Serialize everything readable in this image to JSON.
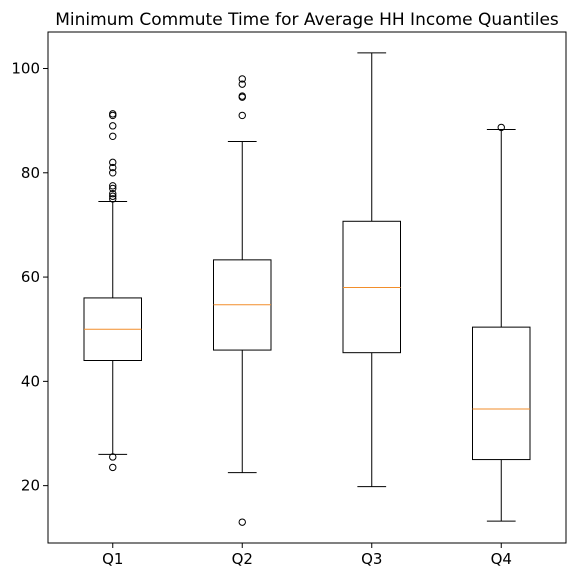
{
  "chart_data": {
    "type": "box",
    "title": "Minimum Commute Time for Average HH Income Quantiles",
    "xlabel": "",
    "ylabel": "",
    "ylim": [
      9,
      107
    ],
    "yticks": [
      20,
      40,
      60,
      80,
      100
    ],
    "grid": false,
    "median_color": "#f28e2b",
    "categories": [
      "Q1",
      "Q2",
      "Q3",
      "Q4"
    ],
    "boxes": [
      {
        "name": "Q1",
        "whisker_low": 26,
        "q1": 44,
        "median": 50,
        "q3": 56,
        "whisker_high": 74.5,
        "fliers": [
          23.5,
          25.5,
          75,
          75.5,
          76,
          77,
          77.5,
          80,
          81,
          82,
          87,
          89,
          91,
          91.3
        ]
      },
      {
        "name": "Q2",
        "whisker_low": 22.5,
        "q1": 46,
        "median": 54.7,
        "q3": 63.3,
        "whisker_high": 86,
        "fliers": [
          13,
          91,
          94.5,
          94.7,
          97,
          98
        ]
      },
      {
        "name": "Q3",
        "whisker_low": 19.8,
        "q1": 45.5,
        "median": 58,
        "q3": 70.7,
        "whisker_high": 103,
        "fliers": []
      },
      {
        "name": "Q4",
        "whisker_low": 13.2,
        "q1": 25,
        "median": 34.7,
        "q3": 50.4,
        "whisker_high": 88.3,
        "fliers": [
          88.7
        ]
      }
    ]
  }
}
